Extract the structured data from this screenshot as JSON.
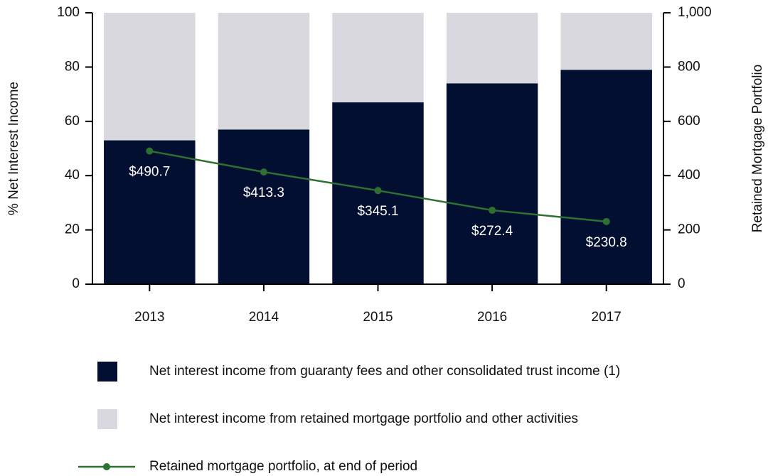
{
  "chart_data": {
    "type": "bar",
    "stacked": true,
    "categories": [
      "2013",
      "2014",
      "2015",
      "2016",
      "2017"
    ],
    "ylabel": "% Net Interest Income",
    "y2label": "Retained Mortgage Portfolio",
    "ylim": [
      0,
      100
    ],
    "yticks": [
      0,
      20,
      40,
      60,
      80,
      100
    ],
    "y2lim": [
      0,
      1000
    ],
    "y2ticks": [
      0,
      200,
      400,
      600,
      800,
      {
        "value": 1000,
        "label": "1,000"
      }
    ],
    "legend": "bottom",
    "series": [
      {
        "name": "Net interest income from guaranty fees and other consolidated trust income (1)",
        "type": "bar",
        "color": "#020f30",
        "values": [
          53,
          57,
          67,
          74,
          79
        ]
      },
      {
        "name": "Net interest income from retained mortgage portfolio and other activities",
        "type": "bar",
        "color": "#d9d8de",
        "values": [
          47,
          43,
          33,
          26,
          21
        ]
      },
      {
        "name": "Retained mortgage portfolio, at end of period",
        "type": "line",
        "axis": "y2",
        "color": "#2e7031",
        "values": [
          490.7,
          413.3,
          345.1,
          272.4,
          230.8
        ],
        "value_labels": [
          "$490.7",
          "$413.3",
          "$345.1",
          "$272.4",
          "$230.8"
        ]
      }
    ]
  }
}
